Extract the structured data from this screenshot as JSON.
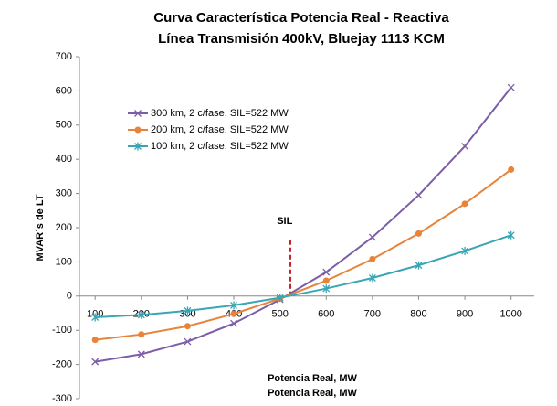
{
  "chart_data": {
    "type": "line",
    "title": [
      "Curva Característica Potencia Real - Reactiva",
      "Línea  Transmisión 400kV, Bluejay 1113 KCM"
    ],
    "ylabel": "MVAR´s de LT",
    "xlabel": "Potencia Real, MW",
    "xlabel2": "Potencia Real, MW",
    "x": [
      100,
      200,
      300,
      400,
      500,
      600,
      700,
      800,
      900,
      1000
    ],
    "xlim": [
      66,
      1050
    ],
    "xticks": [
      100,
      200,
      300,
      400,
      500,
      600,
      700,
      800,
      900,
      1000
    ],
    "ylim": [
      -300,
      700
    ],
    "yticks": [
      -300,
      -200,
      -100,
      0,
      100,
      200,
      300,
      400,
      500,
      600,
      700
    ],
    "grid": false,
    "legend": "upper left",
    "series": [
      {
        "name": "300 km, 2 c/fase, SIL=522 MW",
        "color": "#7b5ea7",
        "marker": "x",
        "values": [
          -192,
          -170,
          -133,
          -80,
          -10,
          70,
          172,
          295,
          438,
          610
        ]
      },
      {
        "name": "200 km, 2 c/fase, SIL=522 MW",
        "color": "#e8833a",
        "marker": "circle",
        "values": [
          -128,
          -112,
          -88,
          -52,
          -7,
          45,
          108,
          183,
          270,
          370
        ]
      },
      {
        "name": "100 km, 2 c/fase, SIL=522 MW",
        "color": "#3aa6b5",
        "marker": "asterisk",
        "values": [
          -62,
          -55,
          -43,
          -27,
          -5,
          22,
          53,
          90,
          132,
          178
        ]
      }
    ],
    "annotation": {
      "text": "SIL",
      "x": 522,
      "y": [
        0,
        170
      ],
      "color": "#c0282d"
    }
  }
}
